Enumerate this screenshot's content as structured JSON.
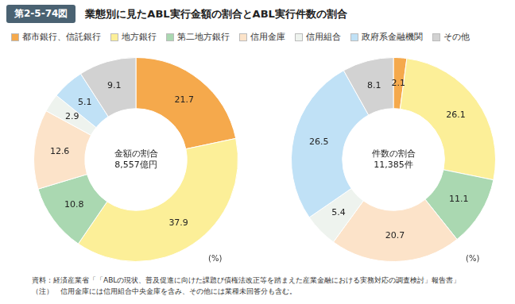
{
  "header": {
    "figure_number": "第2-5-74図",
    "title": "業態別に見たABL実行金額の割合とABL実行件数の割合"
  },
  "chart_data": [
    {
      "type": "doughnut",
      "center_label": [
        "金額の割合",
        "8,557億円"
      ],
      "annotations": [
        "(%)"
      ],
      "categories": [
        "都市銀行、信託銀行",
        "地方銀行",
        "第二地方銀行",
        "信用金庫",
        "信用組合",
        "政府系金融機関",
        "その他"
      ],
      "values": [
        21.7,
        37.9,
        10.8,
        12.6,
        2.9,
        5.1,
        9.1
      ],
      "colors": [
        "#f5a94c",
        "#fcef98",
        "#aad8b1",
        "#fce3c9",
        "#eef3ee",
        "#c0e1f6",
        "#d2d2d2"
      ],
      "data_labels": true,
      "legend": "top"
    },
    {
      "type": "doughnut",
      "center_label": [
        "件数の割合",
        "11,385件"
      ],
      "annotations": [
        "(%)"
      ],
      "categories": [
        "都市銀行、信託銀行",
        "地方銀行",
        "第二地方銀行",
        "信用金庫",
        "信用組合",
        "政府系金融機関",
        "その他"
      ],
      "values": [
        2.1,
        26.1,
        11.1,
        20.7,
        5.4,
        26.5,
        8.1
      ],
      "colors": [
        "#f5a94c",
        "#fcef98",
        "#aad8b1",
        "#fce3c9",
        "#eef3ee",
        "#c0e1f6",
        "#d2d2d2"
      ],
      "data_labels": true
    }
  ],
  "footer": {
    "source": "資料：経済産業省「「ABLの現状、普及促進に向けた課題び債権法改正等を踏まえた産業金融における実務対応の調査検討」報告書」",
    "note": "（注）　信用金庫には信用組合中央金庫を含み、その他には業種未回答分も含む。"
  }
}
